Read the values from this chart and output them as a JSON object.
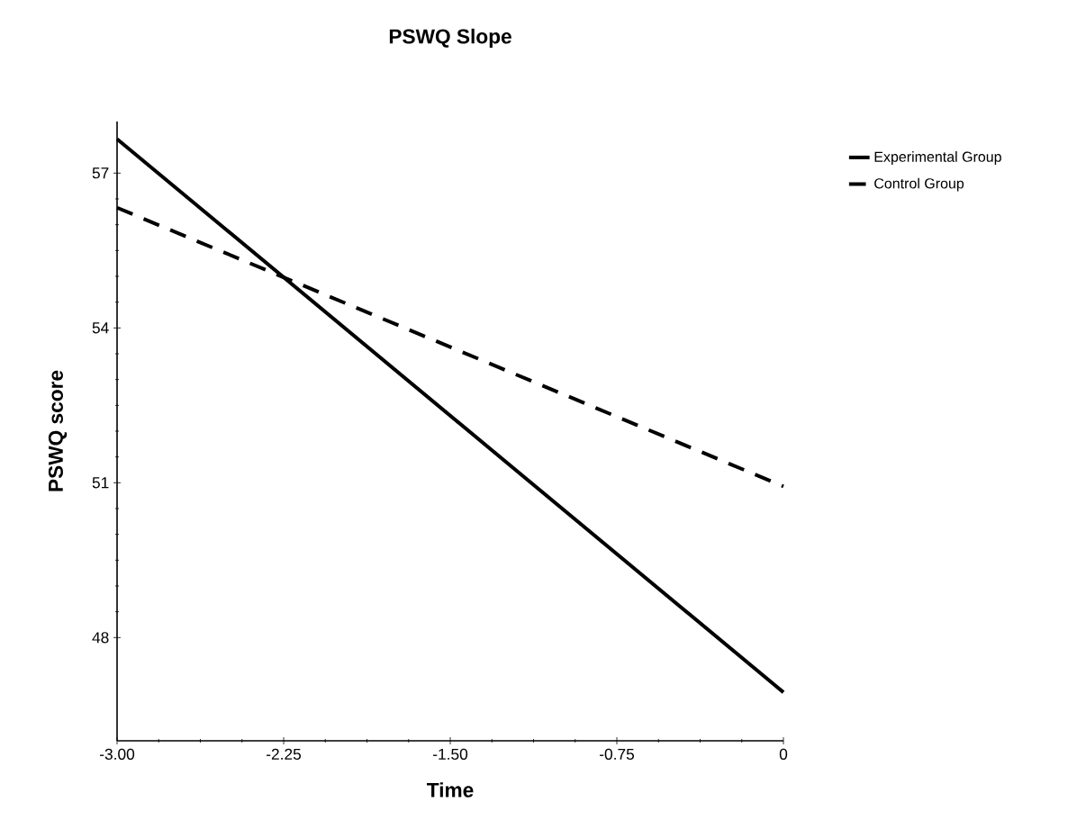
{
  "chart_data": {
    "type": "line",
    "title": "PSWQ Slope",
    "xlabel": "Time",
    "ylabel": "PSWQ score",
    "x": [
      -3,
      0
    ],
    "series": [
      {
        "name": "Experimental Group",
        "color": "#000000",
        "values": [
          57.66,
          46.94
        ],
        "line_style": "solid"
      },
      {
        "name": "Control Group",
        "color": "#000000",
        "values": [
          56.33,
          50.93
        ],
        "line_style": "dashed"
      }
    ],
    "xlim": [
      -3,
      0
    ],
    "xticks": [
      {
        "value": -3,
        "label": "-3.00"
      },
      -2.25,
      {
        "value": -1.5,
        "label": "-1.50"
      },
      -0.75,
      0
    ],
    "ylim": [
      46,
      58
    ],
    "yticks": [
      48,
      51,
      54,
      57
    ],
    "grid": false,
    "legend": "top right",
    "marker": "none"
  }
}
